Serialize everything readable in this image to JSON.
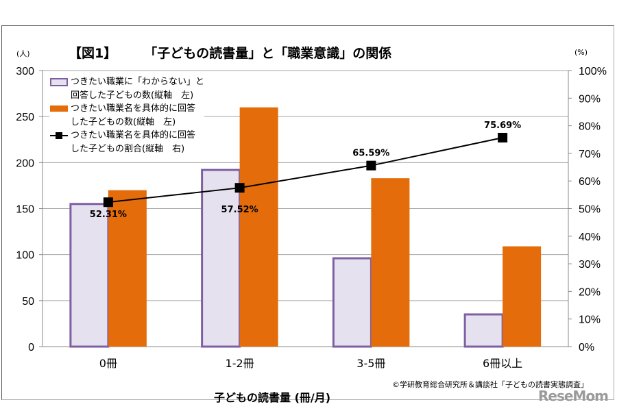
{
  "chart_data": {
    "type": "bar+line",
    "title_left": "【図1】",
    "title": "「子どもの読書量」と「職業意識」の関係",
    "ylabel_left": "(人)",
    "ylabel_right": "(%)",
    "xlabel": "子どもの読書量 (冊/月)",
    "categories": [
      "0冊",
      "1-2冊",
      "3-5冊",
      "6冊以上"
    ],
    "ylim_left": [
      0,
      300
    ],
    "yticks_left": [
      "0",
      "50",
      "100",
      "150",
      "200",
      "250",
      "300"
    ],
    "ylim_right": [
      0,
      100
    ],
    "yticks_right": [
      "0%",
      "10%",
      "20%",
      "30%",
      "40%",
      "50%",
      "60%",
      "70%",
      "80%",
      "90%",
      "100%"
    ],
    "grid": true,
    "legend_position": "top-left",
    "series": [
      {
        "name": "つきたい職業に「わからない」と回答した子どもの数(縦軸　左)",
        "kind": "bar",
        "axis": "left",
        "values": [
          155,
          192,
          96,
          35
        ],
        "fill": "#E6E1EE",
        "stroke": "#7E5FA3"
      },
      {
        "name": "つきたい職業名を具体的に回答した子どもの数(縦軸　左)",
        "kind": "bar",
        "axis": "left",
        "values": [
          170,
          260,
          183,
          109
        ],
        "fill": "#E46C0A"
      },
      {
        "name": "つきたい職業名を具体的に回答した子どもの割合(縦軸　右)",
        "kind": "line",
        "axis": "right",
        "values": [
          52.31,
          57.52,
          65.59,
          75.69
        ],
        "labels": [
          "52.31%",
          "57.52%",
          "65.59%",
          "75.69%"
        ],
        "color": "#000000"
      }
    ]
  },
  "legend": [
    [
      "つきたい職業に「わからない」と",
      "回答した子どもの数(縦軸　左)"
    ],
    [
      "つきたい職業名を具体的に回答",
      "した子どもの数(縦軸　左)"
    ],
    [
      "つきたい職業名を具体的に回答",
      "した子どもの割合(縦軸　右)"
    ]
  ],
  "source": "©学研教育総合研究所＆講談社「子どもの読書実態調査」",
  "watermark": "ReseMom"
}
